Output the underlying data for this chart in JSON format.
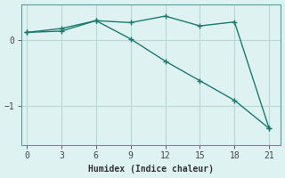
{
  "xlabel": "Humidex (Indice chaleur)",
  "bg_color": "#dff2f2",
  "line_color": "#1a7a6e",
  "grid_color": "#b8d8d8",
  "axis_color": "#5a9a9a",
  "line1_x": [
    0,
    3,
    6,
    9,
    12,
    15,
    18,
    21
  ],
  "line1_y": [
    0.12,
    0.18,
    0.3,
    0.27,
    0.37,
    0.22,
    0.28,
    -1.35
  ],
  "line2_x": [
    0,
    3,
    6,
    9,
    12,
    15,
    18,
    21
  ],
  "line2_y": [
    0.12,
    0.14,
    0.3,
    0.02,
    -0.32,
    -0.62,
    -0.92,
    -1.35
  ],
  "xlim": [
    -0.5,
    22
  ],
  "ylim": [
    -1.6,
    0.55
  ],
  "xticks": [
    0,
    3,
    6,
    9,
    12,
    15,
    18,
    21
  ],
  "yticks": [
    0,
    -1
  ]
}
